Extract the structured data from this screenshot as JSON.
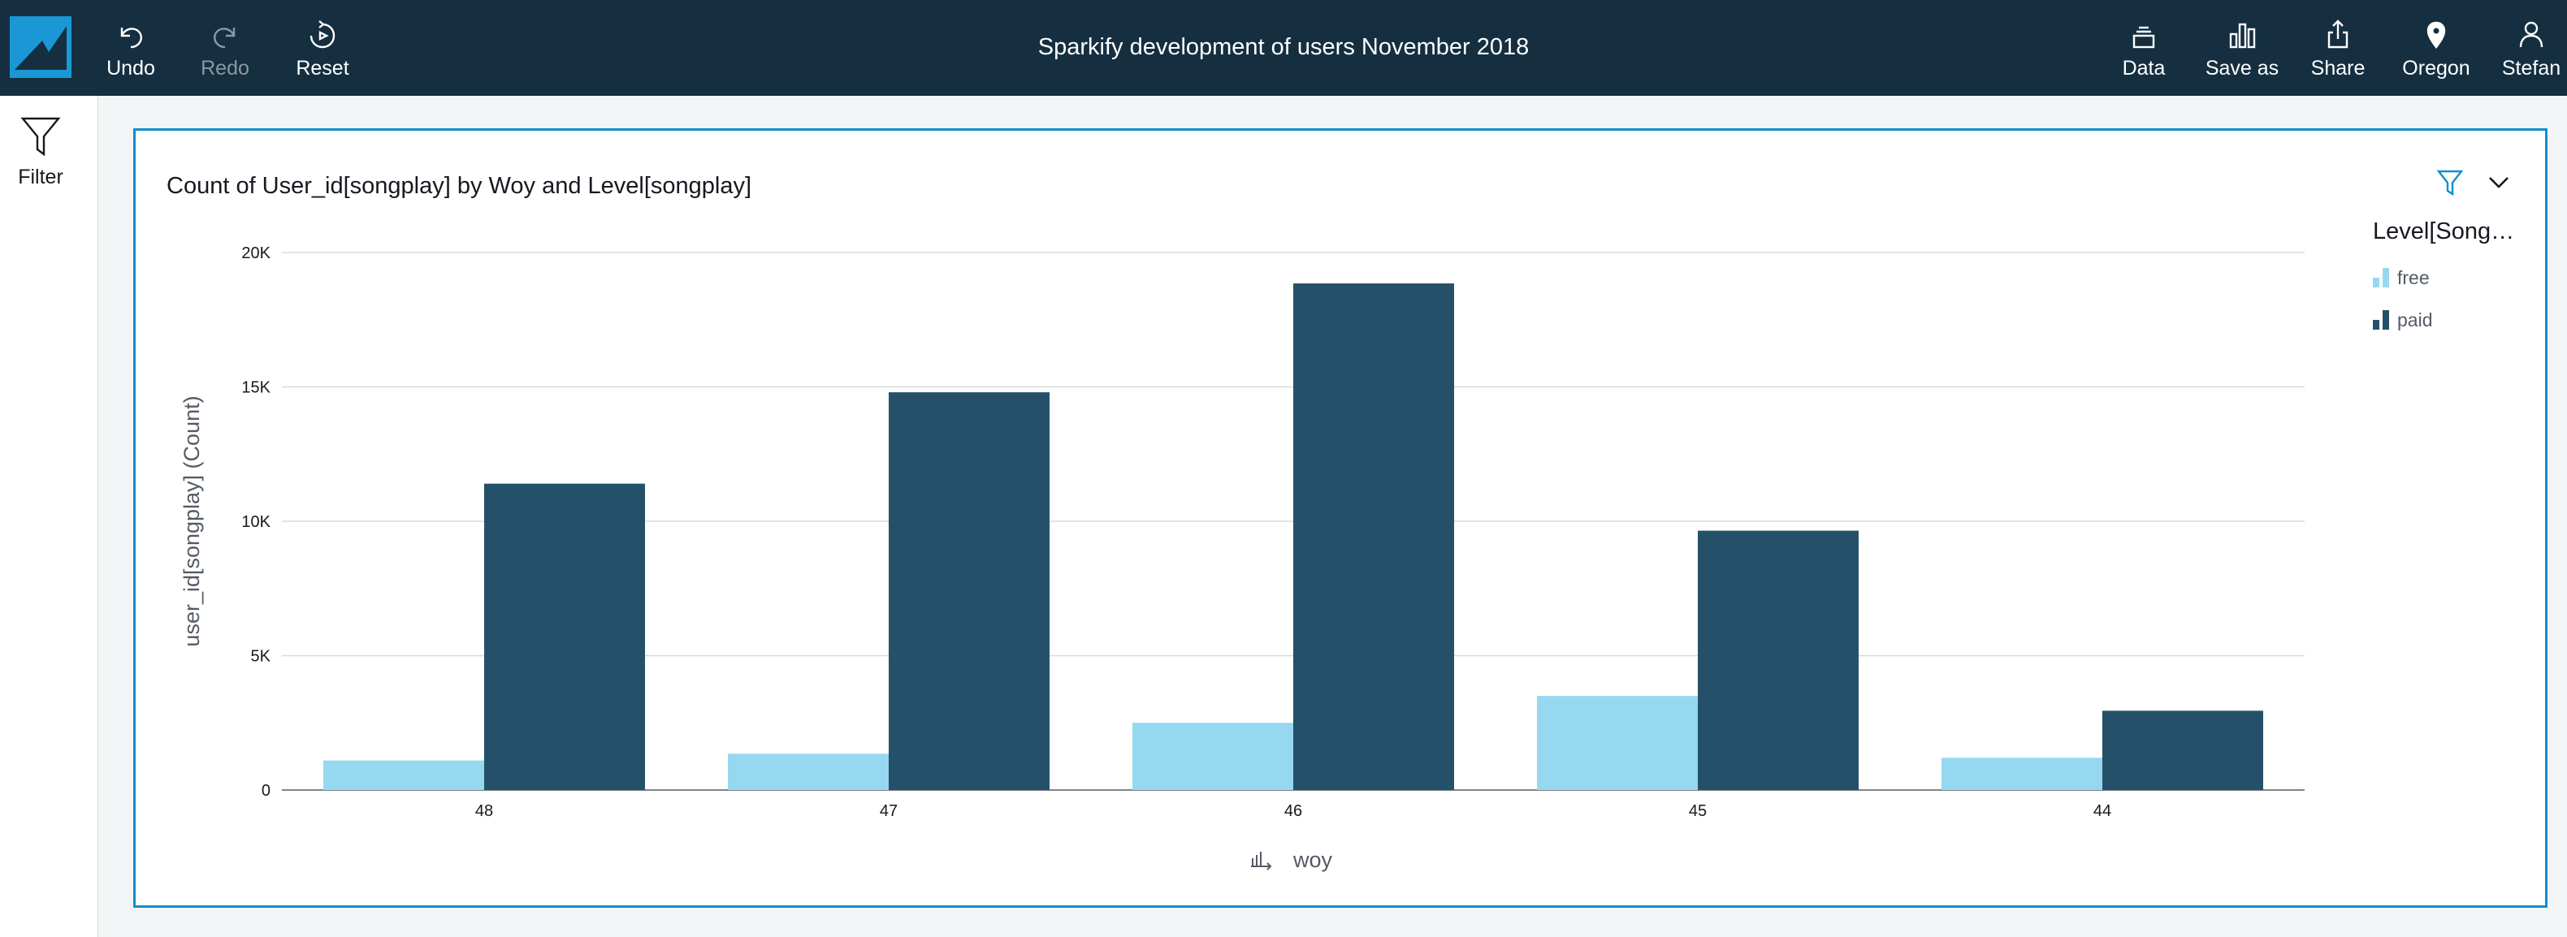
{
  "toolbar": {
    "undo_label": "Undo",
    "redo_label": "Redo",
    "reset_label": "Reset",
    "title": "Sparkify development of users November 2018",
    "data_label": "Data",
    "save_as_label": "Save as",
    "share_label": "Share",
    "region_label": "Oregon",
    "user_label": "Stefan"
  },
  "left_rail": {
    "filter_label": "Filter"
  },
  "visual": {
    "title": "Count of User_id[songplay] by Woy and Level[songplay]",
    "legend_title": "Level[Song…"
  },
  "colors": {
    "accent": "#0f8fd0",
    "header_bg": "#152f41",
    "free": "#96d8ef",
    "paid": "#245169"
  },
  "chart_data": {
    "type": "bar",
    "title": "Count of User_id[songplay] by Woy and Level[songplay]",
    "xlabel": "woy",
    "ylabel": "user_id[songplay] (Count)",
    "categories": [
      "48",
      "47",
      "46",
      "45",
      "44"
    ],
    "series": [
      {
        "name": "free",
        "color": "#96d8ef",
        "values": [
          1100,
          1350,
          2500,
          3500,
          1200
        ]
      },
      {
        "name": "paid",
        "color": "#245169",
        "values": [
          11400,
          14800,
          18850,
          9650,
          2950
        ]
      }
    ],
    "ylim": [
      0,
      20000
    ],
    "yticks": [
      0,
      5000,
      10000,
      15000,
      20000
    ],
    "ytick_labels": [
      "0",
      "5K",
      "10K",
      "15K",
      "20K"
    ],
    "grid": true,
    "legend_position": "right"
  }
}
